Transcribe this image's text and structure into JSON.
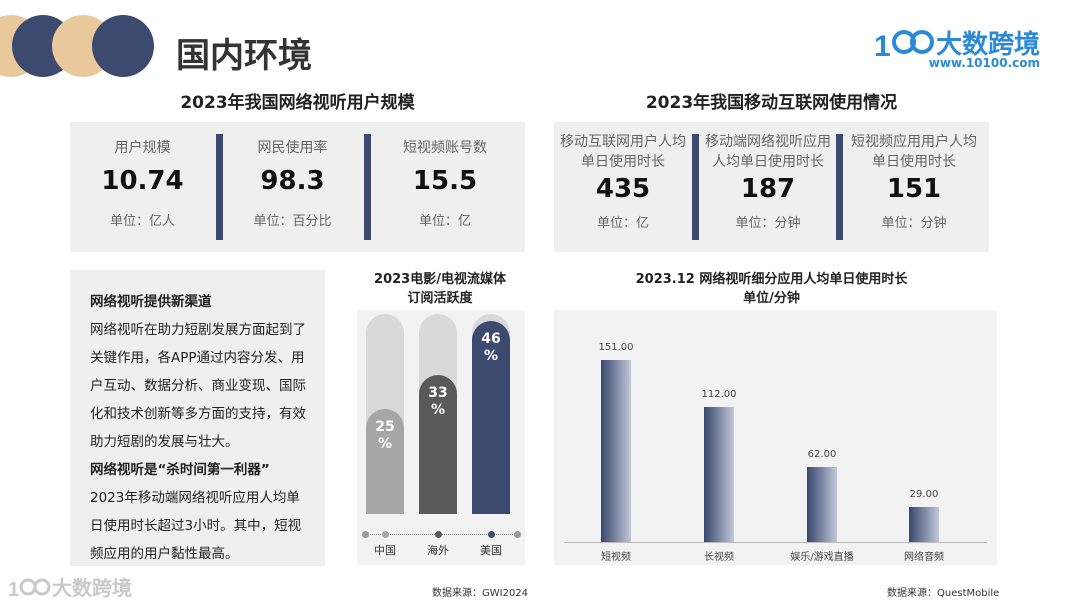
{
  "page_title": "国内环境",
  "logo": {
    "text": "大数跨境",
    "url": "www.10100.com"
  },
  "left_section": {
    "title": "2023年我国网络视听用户规模",
    "stats": [
      {
        "label": "用户规模",
        "value": "10.74",
        "unit": "单位：亿人"
      },
      {
        "label": "网民使用率",
        "value": "98.3",
        "unit": "单位：百分比"
      },
      {
        "label": "短视频账号数",
        "value": "15.5",
        "unit": "单位：亿"
      }
    ]
  },
  "right_section": {
    "title": "2023年我国移动互联网使用情况",
    "stats": [
      {
        "label1": "移动互联网用户人均",
        "label2": "单日使用时长",
        "value": "435",
        "unit": "单位：亿"
      },
      {
        "label1": "移动端网络视听应用",
        "label2": "人均单日使用时长",
        "value": "187",
        "unit": "单位：分钟"
      },
      {
        "label1": "短视频应用用户人均",
        "label2": "单日使用时长",
        "value": "151",
        "unit": "单位：分钟"
      }
    ]
  },
  "text_block": {
    "heading1": "网络视听提供新渠道",
    "para1": [
      "网络视听在助力短剧发展方面起到了",
      "关键作用，各APP通过内容分发、用",
      "户互动、数据分析、商业变现、国际",
      "化和技术创新等多方面的支持，有效",
      "助力短剧的发展与壮大。"
    ],
    "heading2": "网络视听是“杀时间第一利器”",
    "para2": [
      "2023年移动端网络视听应用人均单",
      "日使用时长超过3小时。其中，短视",
      "频应用的用户黏性最高。"
    ]
  },
  "chart_data": [
    {
      "type": "bar",
      "title": "2023电影/电视流媒体订阅活跃度",
      "title_line1": "2023电影/电视流媒体",
      "title_line2": "订阅活跃度",
      "categories": [
        "中国",
        "海外",
        "美国"
      ],
      "values": [
        25,
        33,
        46
      ],
      "value_labels": [
        "25",
        "33",
        "46"
      ],
      "unit": "%",
      "ylim": [
        0,
        100
      ],
      "colors": [
        "#a6a6a6",
        "#595959",
        "#3b4a6e"
      ],
      "source": "数据来源：GWI2024"
    },
    {
      "type": "bar",
      "title": "2023.12 网络视听细分应用人均单日使用时长 单位/分钟",
      "title_line1": "2023.12 网络视听细分应用人均单日使用时长",
      "title_line2": "单位/分钟",
      "categories": [
        "短视频",
        "长视频",
        "娱乐/游戏直播",
        "网络音频"
      ],
      "values": [
        151.0,
        112.0,
        62.0,
        29.0
      ],
      "value_labels": [
        "151.00",
        "112.00",
        "62.00",
        "29.00"
      ],
      "ylim": [
        0,
        170
      ],
      "source": "数据来源：QuestMobile"
    }
  ],
  "footer_logo": "大数跨境"
}
